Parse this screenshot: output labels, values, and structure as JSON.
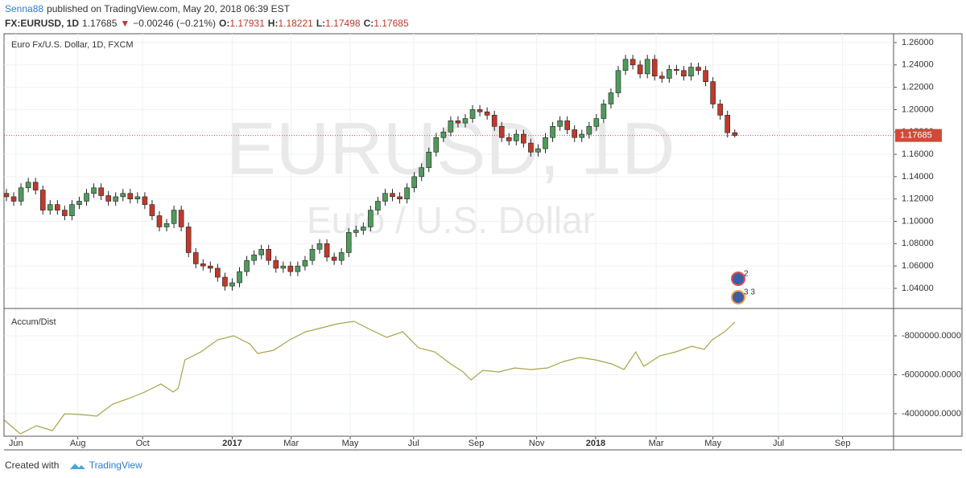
{
  "header": {
    "author": "Senna88",
    "published": "published on TradingView.com, May 20, 2018 06:39 EST",
    "symbol": "FX:EURUSD, 1D",
    "last": "1.17685",
    "arrow": "▼",
    "change": "−0.00246 (−0.21%)",
    "ohlc": [
      {
        "label": "O:",
        "value": "1.17931"
      },
      {
        "label": "H:",
        "value": "1.18221"
      },
      {
        "label": "L:",
        "value": "1.17498"
      },
      {
        "label": "C:",
        "value": "1.17685"
      }
    ]
  },
  "footer": {
    "created": "Created with",
    "brand": "TradingView"
  },
  "chart_data": [
    {
      "type": "candlestick",
      "legend_text": "Euro Fx/U.S. Dollar, 1D, FXCM",
      "watermark": [
        "EURUSD, 1D",
        "Euro / U.S. Dollar"
      ],
      "badges": [
        "2",
        "3 3"
      ],
      "up_color": "#4f9a5c",
      "down_color": "#c0392b",
      "last_value": 1.17685,
      "last_color": "#d04a3a",
      "xlim": [
        -0.33,
        121.8
      ],
      "ylim": [
        1.0227,
        1.2679
      ],
      "yticks": [
        {
          "value": 1.04,
          "label": "1.04000"
        },
        {
          "value": 1.06,
          "label": "1.06000"
        },
        {
          "value": 1.08,
          "label": "1.08000"
        },
        {
          "value": 1.1,
          "label": "1.10000"
        },
        {
          "value": 1.12,
          "label": "1.12000"
        },
        {
          "value": 1.14,
          "label": "1.14000"
        },
        {
          "value": 1.16,
          "label": "1.16000"
        },
        {
          "value": 1.18,
          "label": "1.18000"
        },
        {
          "value": 1.2,
          "label": "1.20000"
        },
        {
          "value": 1.22,
          "label": "1.22000"
        },
        {
          "value": 1.24,
          "label": "1.24000"
        },
        {
          "value": 1.26,
          "label": "1.26000"
        }
      ],
      "x": [
        0,
        1,
        2,
        3,
        4,
        5,
        6,
        7,
        8,
        9,
        10,
        11,
        12,
        13,
        14,
        15,
        16,
        17,
        18,
        19,
        20,
        21,
        22,
        23,
        24,
        25,
        26,
        27,
        28,
        29,
        30,
        31,
        32,
        33,
        34,
        35,
        36,
        37,
        38,
        39,
        40,
        41,
        42,
        43,
        44,
        45,
        46,
        47,
        48,
        49,
        50,
        51,
        52,
        53,
        54,
        55,
        56,
        57,
        58,
        59,
        60,
        61,
        62,
        63,
        64,
        65,
        66,
        67,
        68,
        69,
        70,
        71,
        72,
        73,
        74,
        75,
        76,
        77,
        78,
        79,
        80,
        81,
        82,
        83,
        84,
        85,
        86,
        87,
        88,
        89,
        90,
        91,
        92,
        93,
        94,
        95,
        96,
        97,
        98,
        99,
        100
      ],
      "open": [
        1.125,
        1.122,
        1.118,
        1.13,
        1.135,
        1.128,
        1.11,
        1.115,
        1.11,
        1.105,
        1.115,
        1.118,
        1.125,
        1.13,
        1.123,
        1.118,
        1.122,
        1.125,
        1.12,
        1.122,
        1.115,
        1.105,
        1.095,
        1.098,
        1.11,
        1.095,
        1.072,
        1.062,
        1.06,
        1.058,
        1.05,
        1.042,
        1.045,
        1.055,
        1.065,
        1.07,
        1.075,
        1.065,
        1.058,
        1.06,
        1.055,
        1.06,
        1.065,
        1.075,
        1.08,
        1.068,
        1.065,
        1.072,
        1.09,
        1.092,
        1.095,
        1.11,
        1.118,
        1.125,
        1.122,
        1.12,
        1.13,
        1.14,
        1.148,
        1.162,
        1.175,
        1.18,
        1.19,
        1.188,
        1.192,
        1.2,
        1.198,
        1.195,
        1.185,
        1.175,
        1.172,
        1.178,
        1.17,
        1.162,
        1.165,
        1.175,
        1.185,
        1.19,
        1.182,
        1.175,
        1.178,
        1.185,
        1.192,
        1.205,
        1.215,
        1.235,
        1.245,
        1.24,
        1.232,
        1.245,
        1.23,
        1.228,
        1.236,
        1.235,
        1.23,
        1.238,
        1.235,
        1.225,
        1.205,
        1.195,
        1.17931
      ],
      "high": [
        1.129,
        1.126,
        1.134,
        1.139,
        1.139,
        1.132,
        1.119,
        1.119,
        1.114,
        1.119,
        1.122,
        1.129,
        1.134,
        1.134,
        1.127,
        1.126,
        1.129,
        1.129,
        1.126,
        1.126,
        1.119,
        1.109,
        1.102,
        1.114,
        1.114,
        1.099,
        1.076,
        1.066,
        1.064,
        1.062,
        1.054,
        1.049,
        1.059,
        1.069,
        1.074,
        1.079,
        1.079,
        1.069,
        1.064,
        1.064,
        1.064,
        1.069,
        1.079,
        1.084,
        1.084,
        1.072,
        1.076,
        1.094,
        1.096,
        1.099,
        1.114,
        1.122,
        1.129,
        1.129,
        1.126,
        1.134,
        1.144,
        1.152,
        1.166,
        1.179,
        1.184,
        1.194,
        1.194,
        1.196,
        1.204,
        1.204,
        1.202,
        1.199,
        1.189,
        1.179,
        1.182,
        1.182,
        1.174,
        1.169,
        1.179,
        1.189,
        1.194,
        1.194,
        1.186,
        1.182,
        1.189,
        1.196,
        1.209,
        1.219,
        1.239,
        1.249,
        1.249,
        1.244,
        1.249,
        1.249,
        1.234,
        1.24,
        1.24,
        1.239,
        1.242,
        1.242,
        1.239,
        1.229,
        1.209,
        1.199,
        1.18221
      ],
      "low": [
        1.118,
        1.114,
        1.114,
        1.126,
        1.124,
        1.106,
        1.106,
        1.106,
        1.101,
        1.101,
        1.111,
        1.114,
        1.121,
        1.119,
        1.114,
        1.114,
        1.118,
        1.116,
        1.116,
        1.111,
        1.101,
        1.091,
        1.091,
        1.094,
        1.091,
        1.068,
        1.058,
        1.056,
        1.054,
        1.046,
        1.038,
        1.038,
        1.041,
        1.051,
        1.061,
        1.066,
        1.061,
        1.054,
        1.054,
        1.051,
        1.051,
        1.056,
        1.061,
        1.071,
        1.064,
        1.061,
        1.061,
        1.068,
        1.086,
        1.088,
        1.091,
        1.106,
        1.114,
        1.118,
        1.116,
        1.116,
        1.126,
        1.136,
        1.144,
        1.158,
        1.171,
        1.176,
        1.184,
        1.184,
        1.188,
        1.194,
        1.191,
        1.181,
        1.171,
        1.168,
        1.168,
        1.166,
        1.158,
        1.158,
        1.161,
        1.171,
        1.181,
        1.178,
        1.171,
        1.171,
        1.174,
        1.181,
        1.188,
        1.201,
        1.211,
        1.231,
        1.236,
        1.228,
        1.228,
        1.226,
        1.224,
        1.224,
        1.231,
        1.226,
        1.226,
        1.231,
        1.221,
        1.201,
        1.191,
        1.175,
        1.17498
      ],
      "close": [
        1.122,
        1.118,
        1.13,
        1.135,
        1.128,
        1.11,
        1.115,
        1.11,
        1.105,
        1.115,
        1.118,
        1.125,
        1.13,
        1.123,
        1.118,
        1.122,
        1.125,
        1.12,
        1.122,
        1.115,
        1.105,
        1.095,
        1.098,
        1.11,
        1.095,
        1.072,
        1.062,
        1.06,
        1.058,
        1.05,
        1.042,
        1.045,
        1.055,
        1.065,
        1.07,
        1.075,
        1.065,
        1.058,
        1.06,
        1.055,
        1.06,
        1.065,
        1.075,
        1.08,
        1.068,
        1.065,
        1.072,
        1.09,
        1.092,
        1.095,
        1.11,
        1.118,
        1.125,
        1.122,
        1.12,
        1.13,
        1.14,
        1.148,
        1.162,
        1.175,
        1.18,
        1.19,
        1.188,
        1.192,
        1.2,
        1.198,
        1.195,
        1.185,
        1.175,
        1.172,
        1.178,
        1.17,
        1.162,
        1.165,
        1.175,
        1.185,
        1.19,
        1.182,
        1.175,
        1.178,
        1.185,
        1.192,
        1.205,
        1.215,
        1.235,
        1.245,
        1.24,
        1.232,
        1.245,
        1.23,
        1.228,
        1.236,
        1.235,
        1.23,
        1.238,
        1.235,
        1.225,
        1.205,
        1.195,
        1.17931,
        1.17685
      ]
    },
    {
      "type": "line",
      "xlim": [
        -0.33,
        121.8
      ],
      "ylim": [
        -2845000,
        -9361000
      ],
      "yticks": [
        {
          "value": -4000000,
          "label": "-4000000.0000"
        },
        {
          "value": -6000000,
          "label": "-6000000.0000"
        },
        {
          "value": -8000000,
          "label": "-8000000.0000"
        }
      ],
      "xticks": [
        {
          "value": 1.3,
          "label": "Jun"
        },
        {
          "value": 9.8,
          "label": "Aug"
        },
        {
          "value": 18.7,
          "label": "Oct"
        },
        {
          "value": 31,
          "label": "2017"
        },
        {
          "value": 39.1,
          "label": "Mar"
        },
        {
          "value": 47.2,
          "label": "May"
        },
        {
          "value": 55.9,
          "label": "Jul"
        },
        {
          "value": 64.5,
          "label": "Sep"
        },
        {
          "value": 72.8,
          "label": "Nov"
        },
        {
          "value": 80.9,
          "label": "2018"
        },
        {
          "value": 89.2,
          "label": "Mar"
        },
        {
          "value": 97,
          "label": "May"
        },
        {
          "value": 106,
          "label": "Jul"
        },
        {
          "value": 114.8,
          "label": "Sep"
        }
      ],
      "series": [
        {
          "name": "Accum/Dist",
          "color": "#a8a34c",
          "x": [
            -0.3,
            1.9,
            4.1,
            6.3,
            8.0,
            10.2,
            12.4,
            14.6,
            16.8,
            19.0,
            21.2,
            22.9,
            23.6,
            24.5,
            26.7,
            29.0,
            31.2,
            33.4,
            34.5,
            36.7,
            38.9,
            41.1,
            43.3,
            45.5,
            47.7,
            49.9,
            52.2,
            54.4,
            56.6,
            58.8,
            61.0,
            62.7,
            63.8,
            65.4,
            67.6,
            69.8,
            72.0,
            74.3,
            76.5,
            78.7,
            80.9,
            83.1,
            84.8,
            86.4,
            87.5,
            89.7,
            91.9,
            94.1,
            95.8,
            96.9,
            98.6,
            100.0
          ],
          "values": [
            -3670000,
            -2969000,
            -3381000,
            -3134000,
            -4000000,
            -3959000,
            -3876000,
            -4495000,
            -4784000,
            -5113000,
            -5526000,
            -5113000,
            -5320000,
            -6763000,
            -7175000,
            -7794000,
            -8000000,
            -7588000,
            -7093000,
            -7258000,
            -7794000,
            -8206000,
            -8412000,
            -8619000,
            -8742000,
            -8330000,
            -7918000,
            -8206000,
            -7381000,
            -7175000,
            -6557000,
            -6144000,
            -5732000,
            -6227000,
            -6144000,
            -6351000,
            -6268000,
            -6351000,
            -6680000,
            -6887000,
            -6763000,
            -6557000,
            -6268000,
            -7175000,
            -6433000,
            -6969000,
            -7175000,
            -7464000,
            -7299000,
            -7794000,
            -8206000,
            -8701000
          ]
        }
      ]
    }
  ]
}
